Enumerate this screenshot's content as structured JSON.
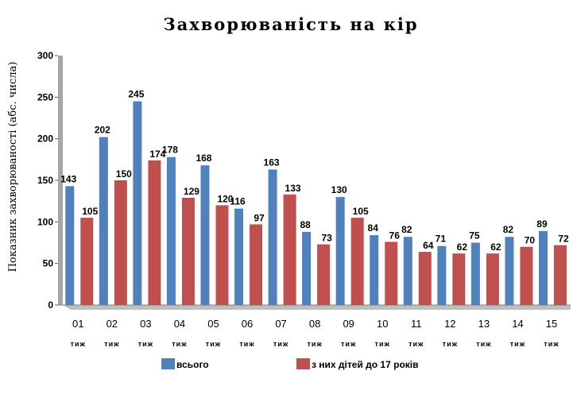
{
  "chart_data": {
    "type": "bar",
    "title": "Захворюваність на кір",
    "ylabel": "Показник захворюваності (абс. числа)",
    "ylim": [
      0,
      300
    ],
    "yticks": [
      0,
      50,
      100,
      150,
      200,
      250,
      300
    ],
    "categories": [
      "01",
      "02",
      "03",
      "04",
      "05",
      "06",
      "07",
      "08",
      "09",
      "10",
      "11",
      "12",
      "13",
      "14",
      "15"
    ],
    "category_unit": "тиж",
    "legend_position": "bottom",
    "series": [
      {
        "name": "всього",
        "color": "#4f81bd",
        "values": [
          143,
          202,
          245,
          178,
          168,
          116,
          163,
          88,
          130,
          84,
          82,
          71,
          75,
          82,
          89
        ]
      },
      {
        "name": "з них дітей до 17 років",
        "color": "#c0504d",
        "values": [
          105,
          150,
          174,
          129,
          120,
          97,
          133,
          73,
          105,
          76,
          64,
          62,
          62,
          70,
          72
        ]
      }
    ]
  }
}
